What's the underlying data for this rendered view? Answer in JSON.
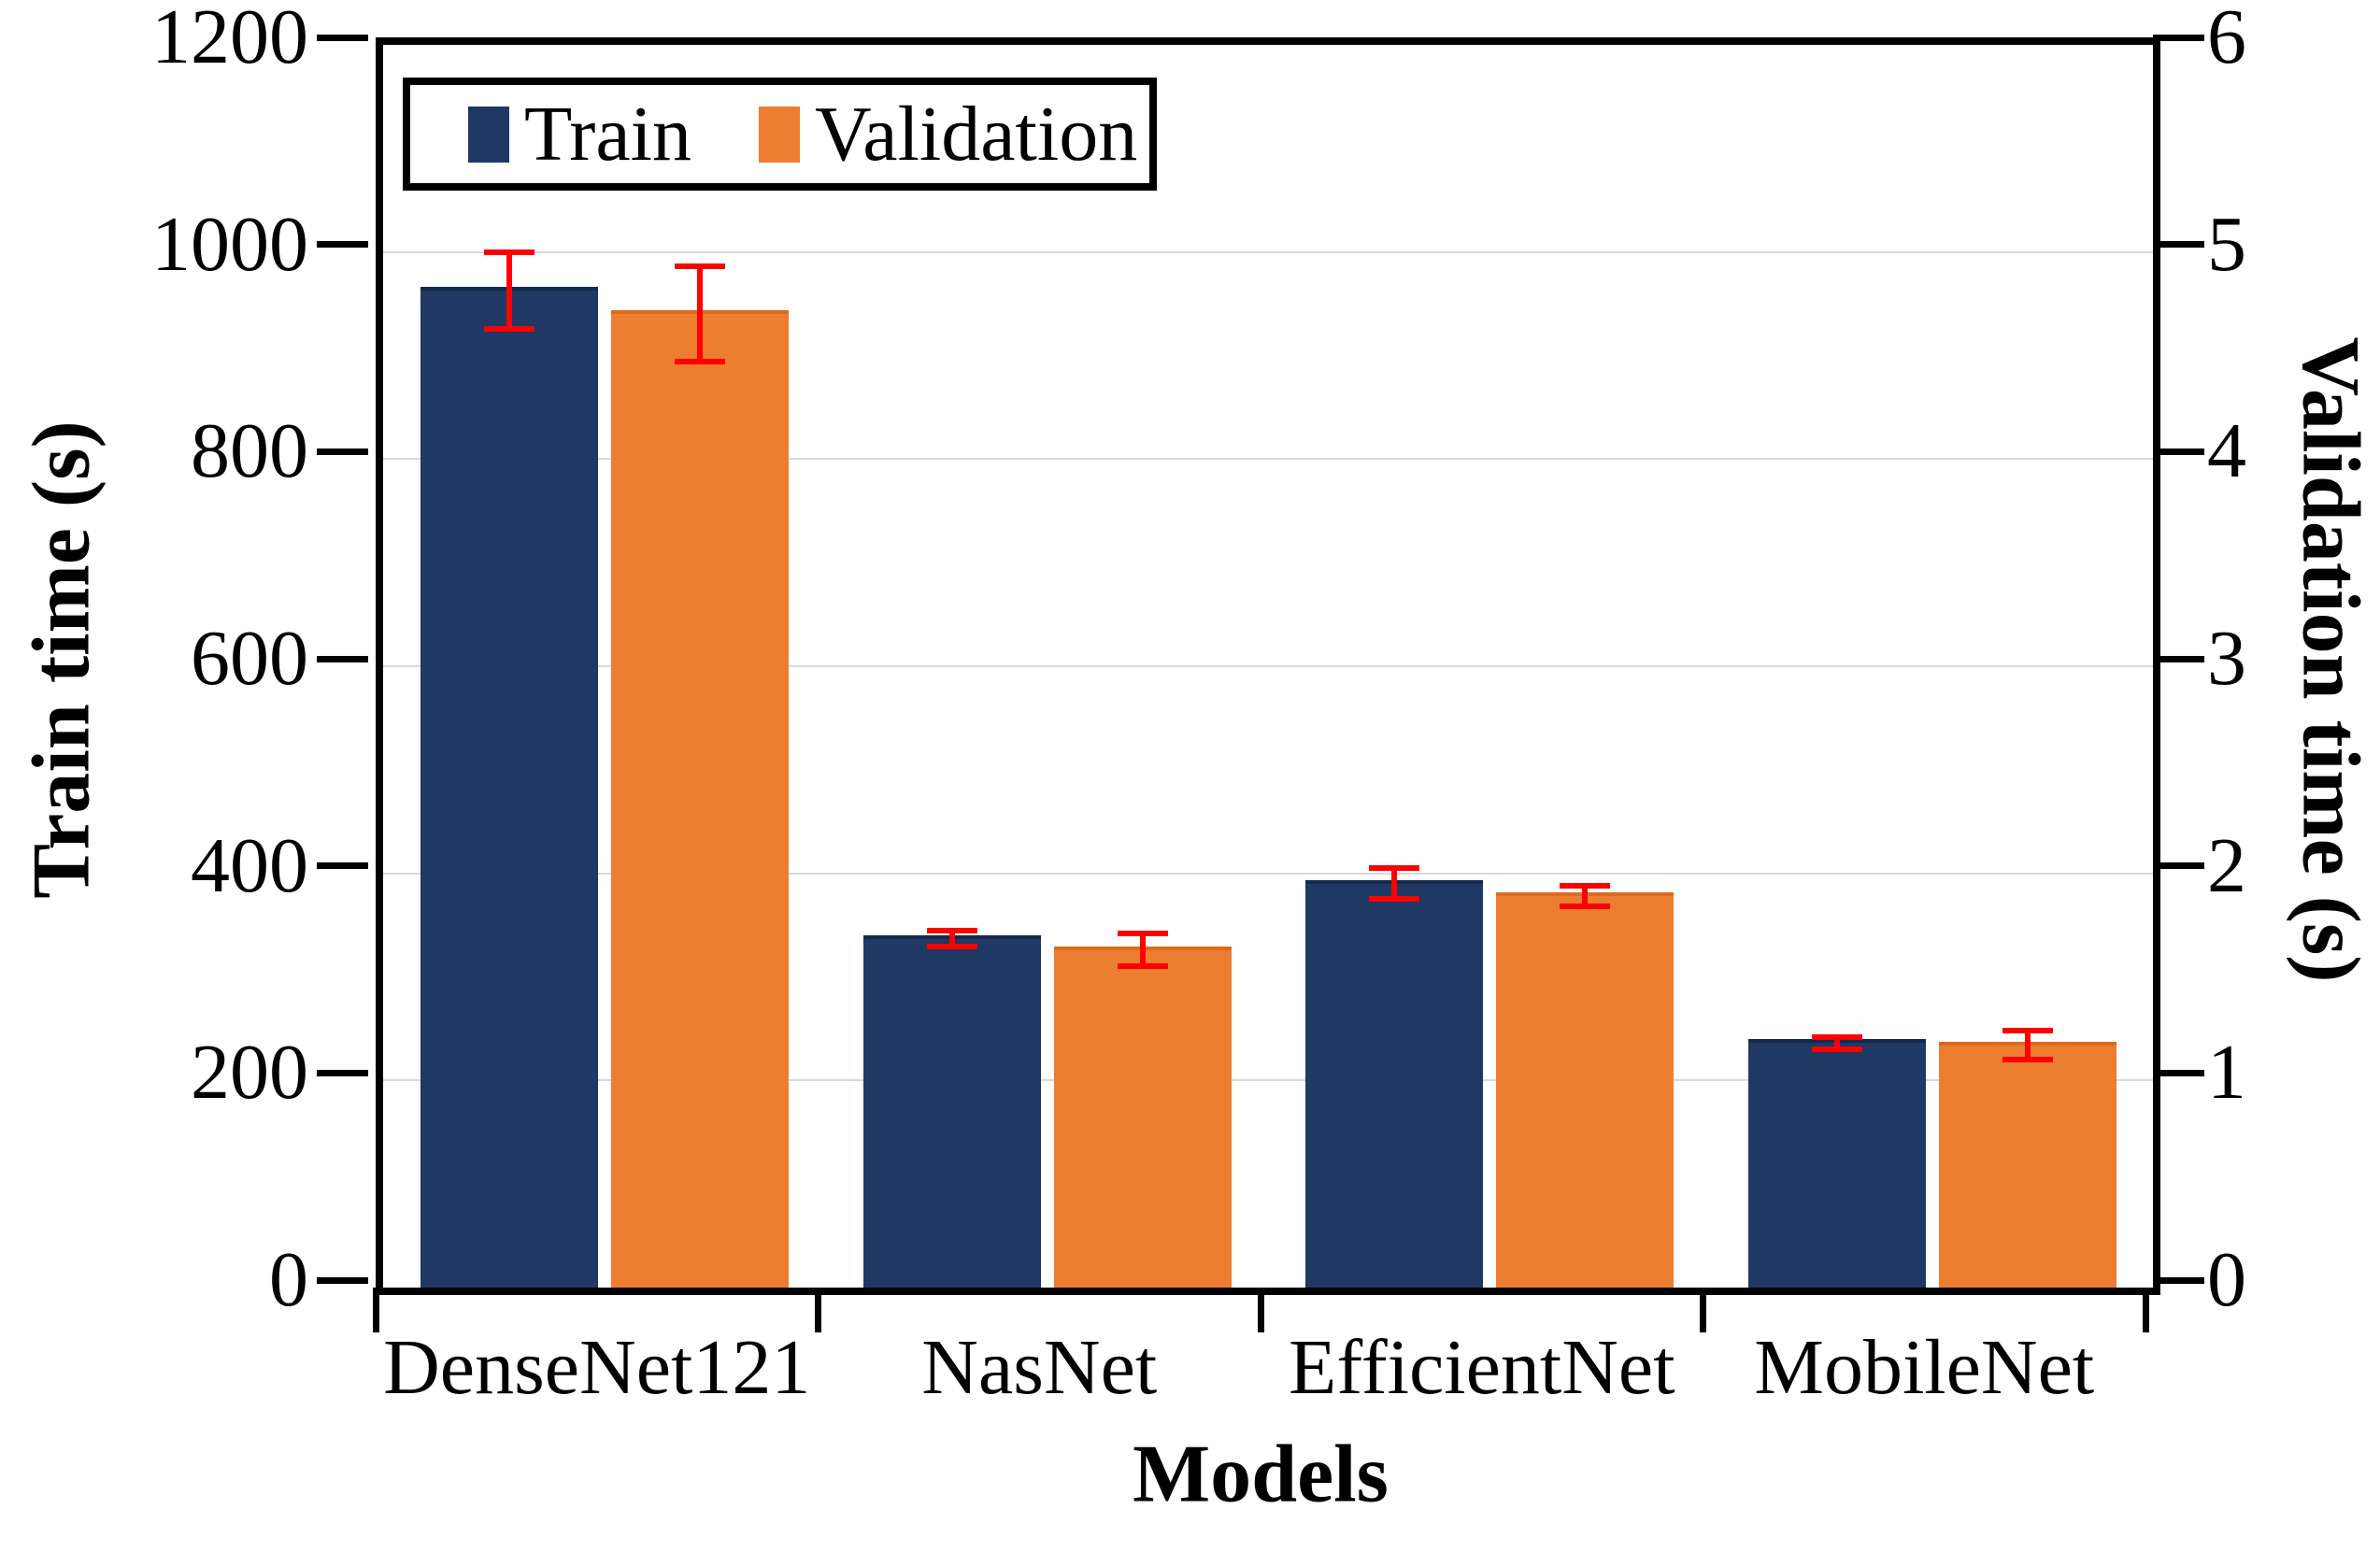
{
  "chart_data": {
    "type": "bar",
    "title": "",
    "categories": [
      "DenseNet121",
      "NasNet",
      "EfficientNet",
      "MobileNet"
    ],
    "series": [
      {
        "name": "Train",
        "axis": "left",
        "color": "#1f3864",
        "values": [
          963,
          337,
          390,
          236
        ],
        "errors": [
          37,
          8,
          15,
          6
        ]
      },
      {
        "name": "Validation",
        "axis": "right",
        "color": "#ed7d31",
        "values": [
          4.7,
          1.63,
          1.89,
          1.17
        ],
        "errors": [
          0.23,
          0.08,
          0.05,
          0.07
        ]
      }
    ],
    "left_axis": {
      "label": "Train time (s)",
      "min": 0,
      "max": 1200,
      "ticks": [
        0,
        200,
        400,
        600,
        800,
        1000,
        1200
      ]
    },
    "right_axis": {
      "label": "Validation time (s)",
      "min": 0,
      "max": 6,
      "ticks": [
        0,
        1,
        2,
        3,
        4,
        5,
        6
      ]
    },
    "x_axis": {
      "label": "Models"
    },
    "legend": {
      "position": "top-left",
      "entries": [
        "Train",
        "Validation"
      ]
    },
    "gridline_values": [
      200,
      400,
      600,
      800,
      1000
    ],
    "colors": {
      "error_bar": "#ff0000",
      "gridline": "#d9d9d9",
      "axis": "#000000"
    },
    "grid": "horizontal-on",
    "error_bars": "red, caps top and bottom, both series"
  }
}
